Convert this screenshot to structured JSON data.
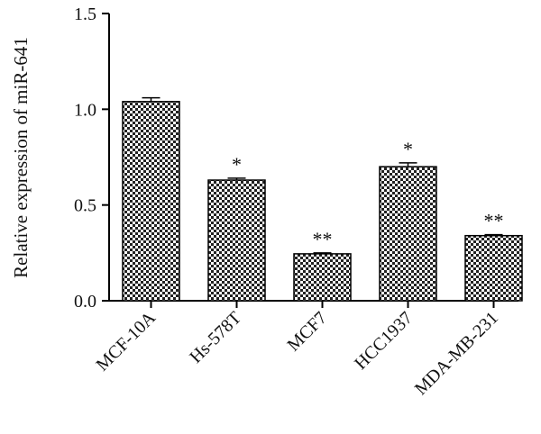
{
  "chart_data": {
    "type": "bar",
    "title": "",
    "xlabel": "",
    "ylabel": "Relative expression of miR-641",
    "ylim": [
      0,
      1.5
    ],
    "yticks": [
      "0.0",
      "0.5",
      "1.0",
      "1.5"
    ],
    "categories": [
      "MCF-10A",
      "Hs-578T",
      "MCF7",
      "HCC1937",
      "MDA-MB-231"
    ],
    "values": [
      1.04,
      0.63,
      0.245,
      0.7,
      0.34
    ],
    "errors": [
      0.02,
      0.01,
      0.005,
      0.02,
      0.005
    ],
    "significance": [
      "",
      "*",
      "**",
      "*",
      "**"
    ],
    "grid": false,
    "bar_pattern": "checkerboard",
    "colors": {
      "bar_dark": "#222222",
      "bar_light": "#ffffff",
      "axis": "#000000"
    }
  }
}
